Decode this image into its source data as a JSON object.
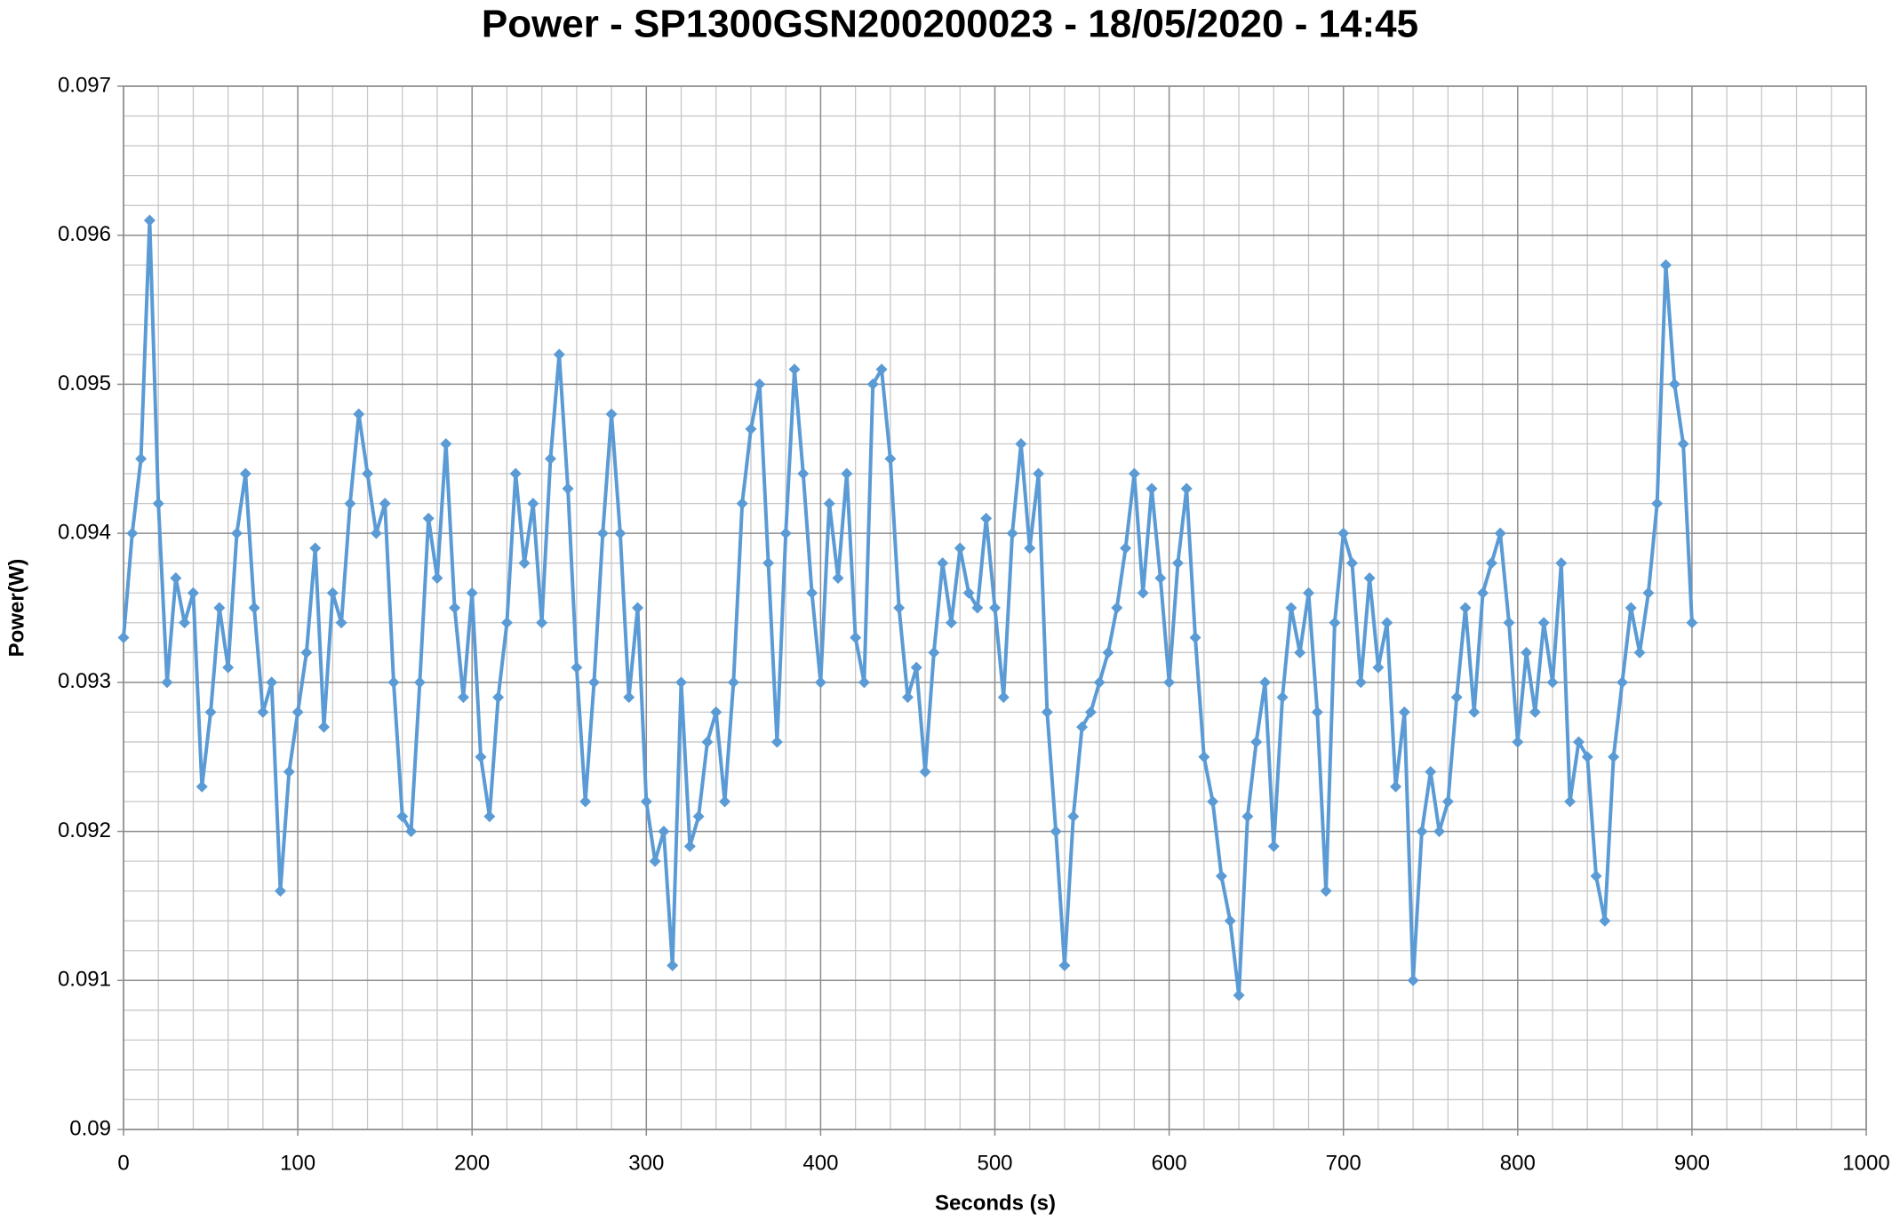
{
  "chart_data": {
    "type": "line",
    "title": "Power - SP1300GSN200200023 - 18/05/2020 - 14:45",
    "xlabel": "Seconds (s)",
    "ylabel": "Power(W)",
    "color": "#5b9bd5",
    "marker": "diamond",
    "grid": true,
    "minor_grid_per_major": 5,
    "xlim": [
      0,
      1000
    ],
    "xticks": [
      0,
      100,
      200,
      300,
      400,
      500,
      600,
      700,
      800,
      900,
      1000
    ],
    "ylim": [
      0.09,
      0.097
    ],
    "yticks": [
      0.09,
      0.091,
      0.092,
      0.093,
      0.094,
      0.095,
      0.096,
      0.097
    ],
    "x": [
      0,
      5,
      10,
      15,
      20,
      25,
      30,
      35,
      40,
      45,
      50,
      55,
      60,
      65,
      70,
      75,
      80,
      85,
      90,
      95,
      100,
      105,
      110,
      115,
      120,
      125,
      130,
      135,
      140,
      145,
      150,
      155,
      160,
      165,
      170,
      175,
      180,
      185,
      190,
      195,
      200,
      205,
      210,
      215,
      220,
      225,
      230,
      235,
      240,
      245,
      250,
      255,
      260,
      265,
      270,
      275,
      280,
      285,
      290,
      295,
      300,
      305,
      310,
      315,
      320,
      325,
      330,
      335,
      340,
      345,
      350,
      355,
      360,
      365,
      370,
      375,
      380,
      385,
      390,
      395,
      400,
      405,
      410,
      415,
      420,
      425,
      430,
      435,
      440,
      445,
      450,
      455,
      460,
      465,
      470,
      475,
      480,
      485,
      490,
      495,
      500,
      505,
      510,
      515,
      520,
      525,
      530,
      535,
      540,
      545,
      550,
      555,
      560,
      565,
      570,
      575,
      580,
      585,
      590,
      595,
      600,
      605,
      610,
      615,
      620,
      625,
      630,
      635,
      640,
      645,
      650,
      655,
      660,
      665,
      670,
      675,
      680,
      685,
      690,
      695,
      700,
      705,
      710,
      715,
      720,
      725,
      730,
      735,
      740,
      745,
      750,
      755,
      760,
      765,
      770,
      775,
      780,
      785,
      790,
      795,
      800,
      805,
      810,
      815,
      820,
      825,
      830,
      835,
      840,
      845,
      850,
      855,
      860,
      865,
      870,
      875,
      880,
      885,
      890,
      895,
      900
    ],
    "values": [
      0.0933,
      0.094,
      0.0945,
      0.0961,
      0.0942,
      0.093,
      0.0937,
      0.0934,
      0.0936,
      0.0923,
      0.0928,
      0.0935,
      0.0931,
      0.094,
      0.0944,
      0.0935,
      0.0928,
      0.093,
      0.0916,
      0.0924,
      0.0928,
      0.0932,
      0.0939,
      0.0927,
      0.0936,
      0.0934,
      0.0942,
      0.0948,
      0.0944,
      0.094,
      0.0942,
      0.093,
      0.0921,
      0.092,
      0.093,
      0.0941,
      0.0937,
      0.0946,
      0.0935,
      0.0929,
      0.0936,
      0.0925,
      0.0921,
      0.0929,
      0.0934,
      0.0944,
      0.0938,
      0.0942,
      0.0934,
      0.0945,
      0.0952,
      0.0943,
      0.0931,
      0.0922,
      0.093,
      0.094,
      0.0948,
      0.094,
      0.0929,
      0.0935,
      0.0922,
      0.0918,
      0.092,
      0.0911,
      0.093,
      0.0919,
      0.0921,
      0.0926,
      0.0928,
      0.0922,
      0.093,
      0.0942,
      0.0947,
      0.095,
      0.0938,
      0.0926,
      0.094,
      0.0951,
      0.0944,
      0.0936,
      0.093,
      0.0942,
      0.0937,
      0.0944,
      0.0933,
      0.093,
      0.095,
      0.0951,
      0.0945,
      0.0935,
      0.0929,
      0.0931,
      0.0924,
      0.0932,
      0.0938,
      0.0934,
      0.0939,
      0.0936,
      0.0935,
      0.0941,
      0.0935,
      0.0929,
      0.094,
      0.0946,
      0.0939,
      0.0944,
      0.0928,
      0.092,
      0.0911,
      0.0921,
      0.0927,
      0.0928,
      0.093,
      0.0932,
      0.0935,
      0.0939,
      0.0944,
      0.0936,
      0.0943,
      0.0937,
      0.093,
      0.0938,
      0.0943,
      0.0933,
      0.0925,
      0.0922,
      0.0917,
      0.0914,
      0.0909,
      0.0921,
      0.0926,
      0.093,
      0.0919,
      0.0929,
      0.0935,
      0.0932,
      0.0936,
      0.0928,
      0.0916,
      0.0934,
      0.094,
      0.0938,
      0.093,
      0.0937,
      0.0931,
      0.0934,
      0.0923,
      0.0928,
      0.091,
      0.092,
      0.0924,
      0.092,
      0.0922,
      0.0929,
      0.0935,
      0.0928,
      0.0936,
      0.0938,
      0.094,
      0.0934,
      0.0926,
      0.0932,
      0.0928,
      0.0934,
      0.093,
      0.0938,
      0.0922,
      0.0926,
      0.0925,
      0.0917,
      0.0914,
      0.0925,
      0.093,
      0.0935,
      0.0932,
      0.0936,
      0.0942,
      0.0958,
      0.095,
      0.0946,
      0.0934
    ]
  }
}
